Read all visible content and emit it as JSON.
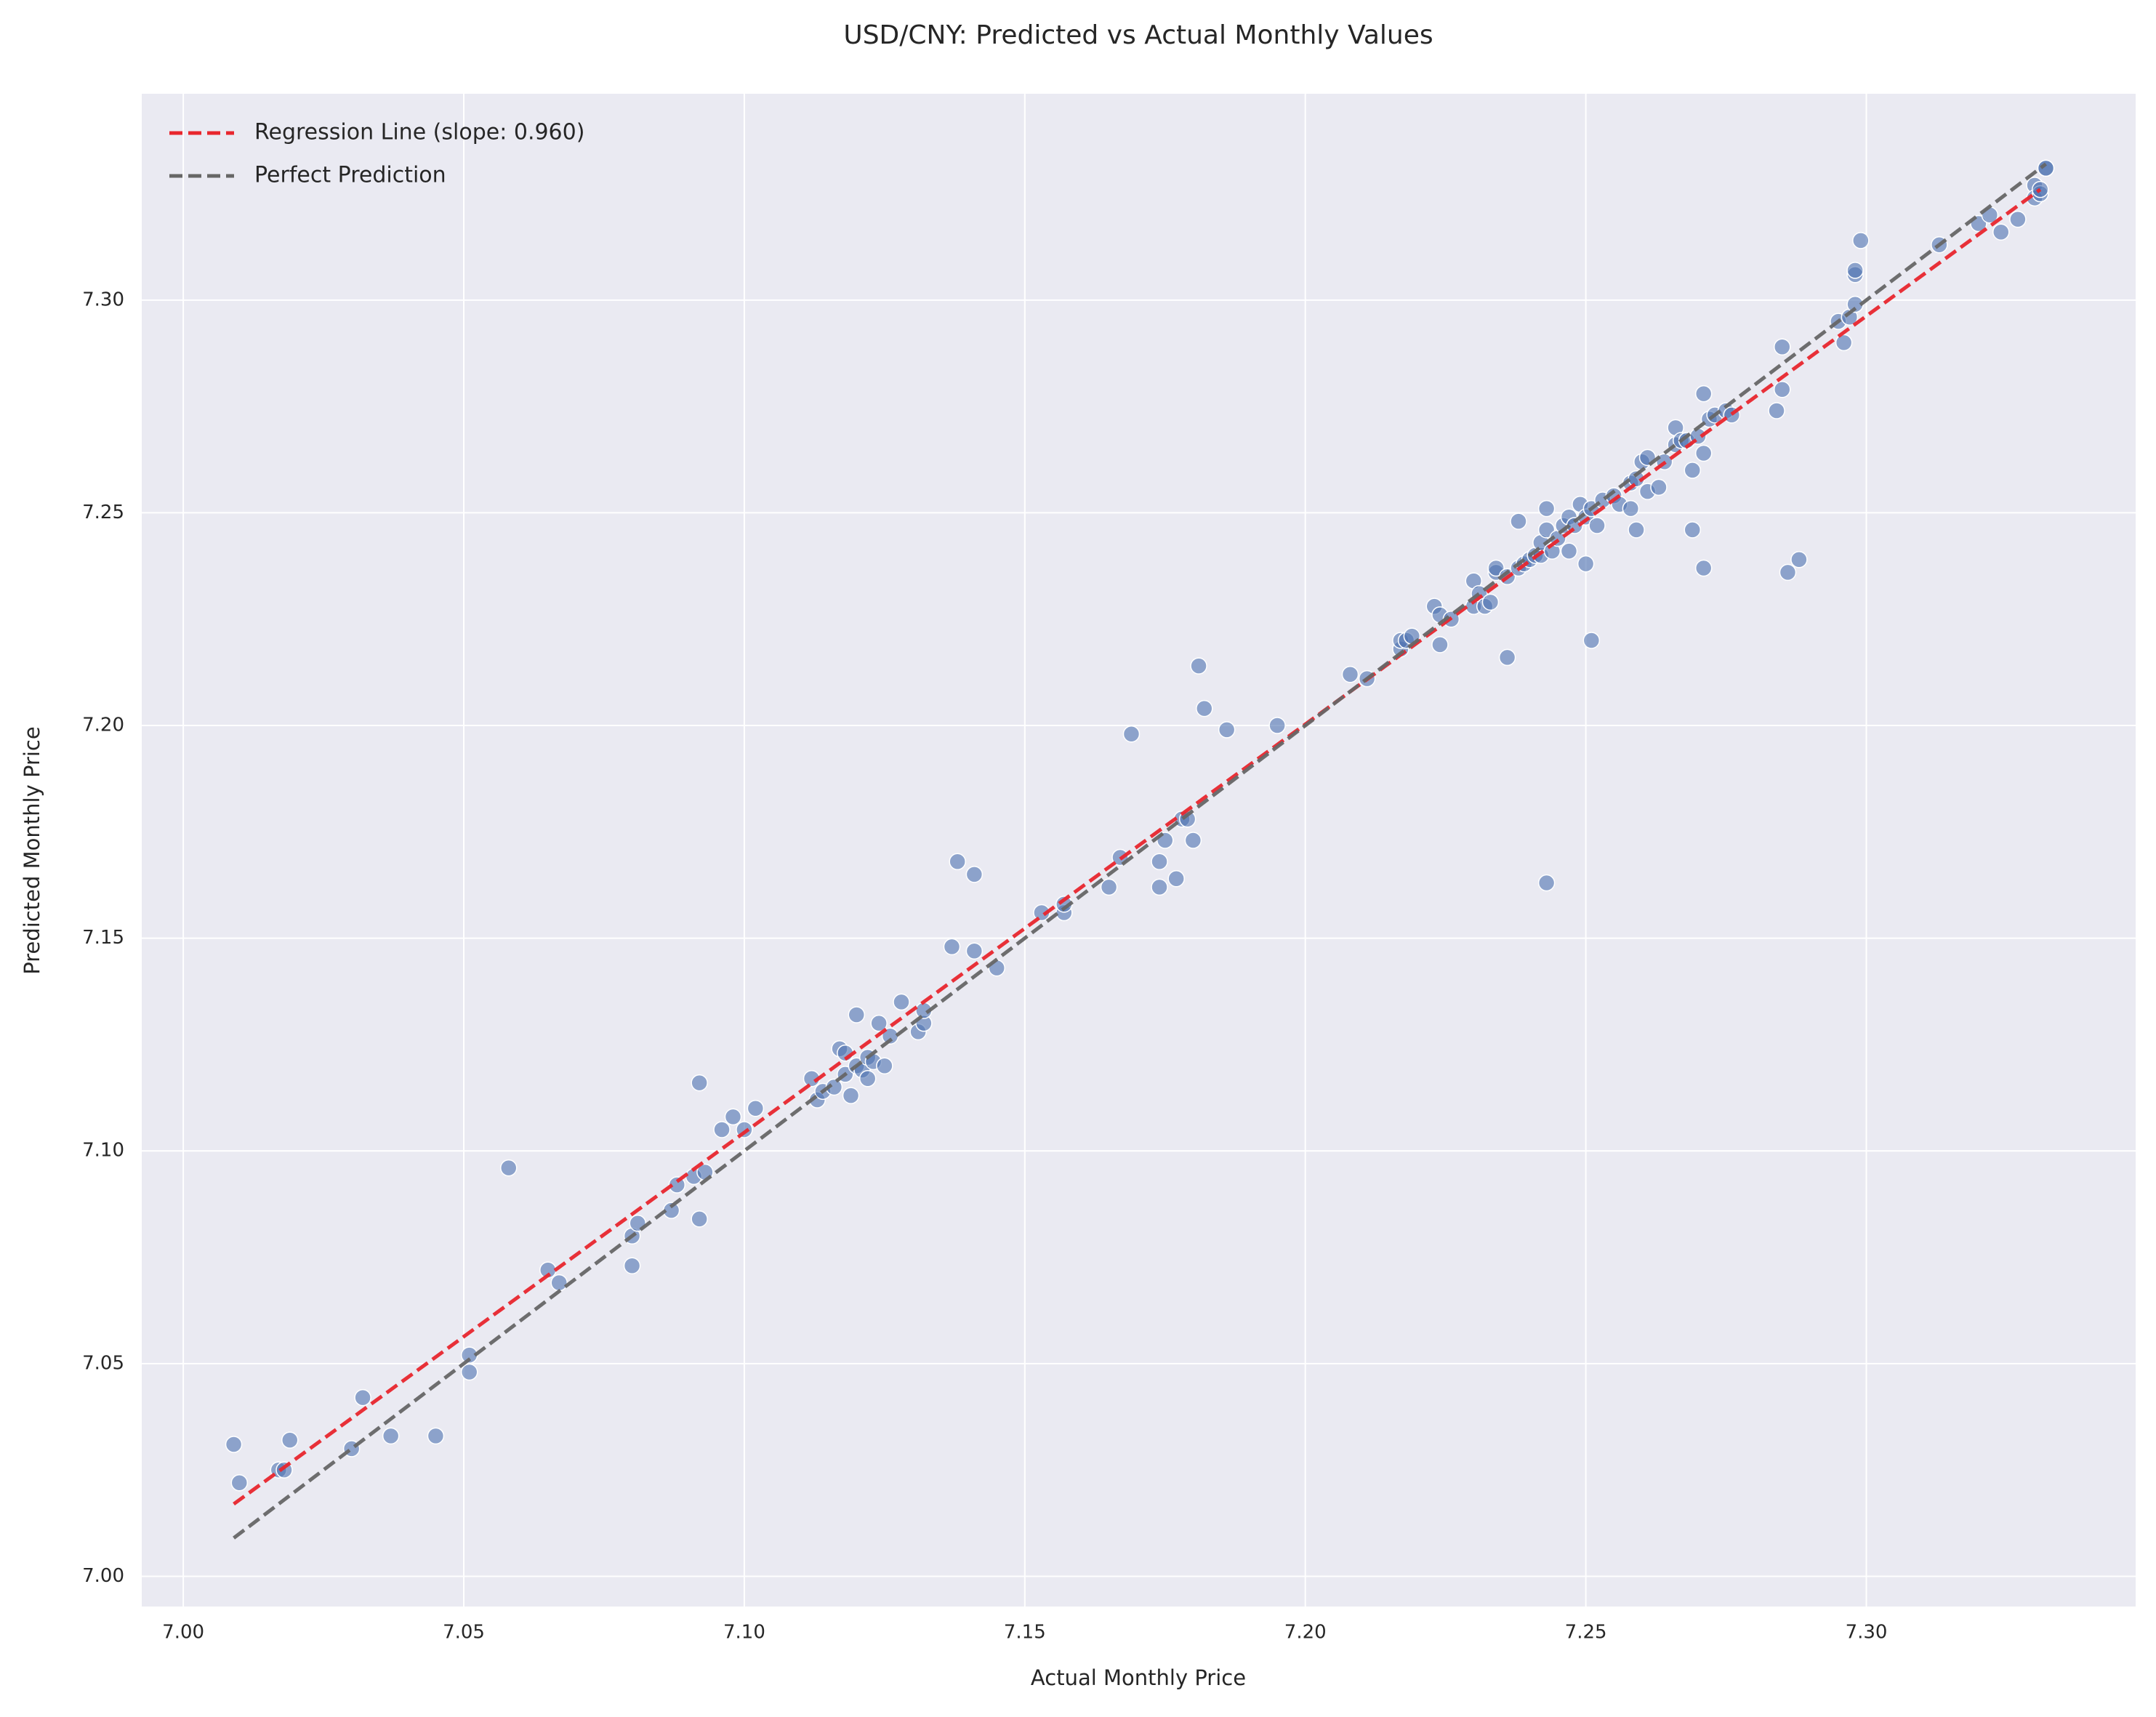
{
  "chart_data": {
    "type": "scatter",
    "title": "USD/CNY: Predicted vs Actual Monthly Values",
    "xlabel": "Actual Monthly Price",
    "ylabel": "Predicted Monthly Price",
    "xlim": [
      6.9926,
      7.348
    ],
    "ylim": [
      6.9929,
      7.3485
    ],
    "xticks": [
      {
        "value": 7.0,
        "label": "7.00"
      },
      {
        "value": 7.05,
        "label": "7.05"
      },
      {
        "value": 7.1,
        "label": "7.10"
      },
      {
        "value": 7.15,
        "label": "7.15"
      },
      {
        "value": 7.2,
        "label": "7.20"
      },
      {
        "value": 7.25,
        "label": "7.25"
      },
      {
        "value": 7.3,
        "label": "7.30"
      }
    ],
    "yticks": [
      {
        "value": 7.0,
        "label": "7.00"
      },
      {
        "value": 7.05,
        "label": "7.05"
      },
      {
        "value": 7.1,
        "label": "7.10"
      },
      {
        "value": 7.15,
        "label": "7.15"
      },
      {
        "value": 7.2,
        "label": "7.20"
      },
      {
        "value": 7.25,
        "label": "7.25"
      },
      {
        "value": 7.3,
        "label": "7.30"
      }
    ],
    "grid": true,
    "legend": "upper left",
    "points": {
      "color": "#4c72b0",
      "x": [
        7.009,
        7.01,
        7.017,
        7.018,
        7.019,
        7.03,
        7.032,
        7.037,
        7.045,
        7.051,
        7.051,
        7.058,
        7.065,
        7.067,
        7.08,
        7.08,
        7.081,
        7.087,
        7.088,
        7.091,
        7.092,
        7.092,
        7.093,
        7.096,
        7.098,
        7.1,
        7.102,
        7.112,
        7.113,
        7.114,
        7.116,
        7.117,
        7.118,
        7.118,
        7.119,
        7.12,
        7.12,
        7.121,
        7.122,
        7.122,
        7.123,
        7.124,
        7.125,
        7.126,
        7.128,
        7.131,
        7.132,
        7.132,
        7.137,
        7.138,
        7.141,
        7.141,
        7.145,
        7.153,
        7.157,
        7.157,
        7.165,
        7.167,
        7.169,
        7.174,
        7.174,
        7.175,
        7.177,
        7.178,
        7.179,
        7.18,
        7.181,
        7.182,
        7.186,
        7.195,
        7.208,
        7.211,
        7.217,
        7.217,
        7.218,
        7.219,
        7.223,
        7.224,
        7.224,
        7.226,
        7.23,
        7.23,
        7.231,
        7.232,
        7.233,
        7.234,
        7.234,
        7.236,
        7.236,
        7.238,
        7.238,
        7.239,
        7.24,
        7.241,
        7.242,
        7.242,
        7.243,
        7.243,
        7.243,
        7.244,
        7.245,
        7.246,
        7.247,
        7.247,
        7.248,
        7.249,
        7.25,
        7.25,
        7.251,
        7.251,
        7.252,
        7.253,
        7.255,
        7.256,
        7.258,
        7.258,
        7.259,
        7.259,
        7.26,
        7.261,
        7.261,
        7.263,
        7.264,
        7.266,
        7.266,
        7.267,
        7.268,
        7.269,
        7.269,
        7.27,
        7.271,
        7.271,
        7.271,
        7.272,
        7.273,
        7.275,
        7.276,
        7.284,
        7.285,
        7.285,
        7.286,
        7.288,
        7.295,
        7.296,
        7.297,
        7.298,
        7.298,
        7.298,
        7.299,
        7.313,
        7.32,
        7.322,
        7.324,
        7.327,
        7.33,
        7.33,
        7.331,
        7.331,
        7.332,
        7.332
      ],
      "y": [
        7.031,
        7.022,
        7.025,
        7.025,
        7.032,
        7.03,
        7.042,
        7.033,
        7.033,
        7.048,
        7.052,
        7.096,
        7.072,
        7.069,
        7.073,
        7.08,
        7.083,
        7.086,
        7.092,
        7.094,
        7.084,
        7.116,
        7.095,
        7.105,
        7.108,
        7.105,
        7.11,
        7.117,
        7.112,
        7.114,
        7.115,
        7.124,
        7.123,
        7.118,
        7.113,
        7.12,
        7.132,
        7.119,
        7.117,
        7.122,
        7.121,
        7.13,
        7.12,
        7.127,
        7.135,
        7.128,
        7.13,
        7.133,
        7.148,
        7.168,
        7.147,
        7.165,
        7.143,
        7.156,
        7.156,
        7.158,
        7.162,
        7.169,
        7.198,
        7.162,
        7.168,
        7.173,
        7.164,
        7.178,
        7.178,
        7.173,
        7.214,
        7.204,
        7.199,
        7.2,
        7.212,
        7.211,
        7.218,
        7.22,
        7.22,
        7.221,
        7.228,
        7.226,
        7.219,
        7.225,
        7.228,
        7.234,
        7.231,
        7.228,
        7.229,
        7.236,
        7.237,
        7.235,
        7.216,
        7.237,
        7.248,
        7.238,
        7.239,
        7.24,
        7.24,
        7.243,
        7.246,
        7.251,
        7.163,
        7.241,
        7.244,
        7.247,
        7.241,
        7.249,
        7.247,
        7.252,
        7.238,
        7.249,
        7.22,
        7.251,
        7.247,
        7.253,
        7.254,
        7.252,
        7.257,
        7.251,
        7.258,
        7.246,
        7.262,
        7.263,
        7.255,
        7.256,
        7.262,
        7.27,
        7.266,
        7.267,
        7.267,
        7.26,
        7.246,
        7.268,
        7.237,
        7.264,
        7.278,
        7.272,
        7.273,
        7.274,
        7.273,
        7.274,
        7.279,
        7.289,
        7.236,
        7.239,
        7.295,
        7.29,
        7.296,
        7.299,
        7.306,
        7.307,
        7.314,
        7.313,
        7.318,
        7.32,
        7.316,
        7.319,
        7.327,
        7.324,
        7.325,
        7.326,
        7.331,
        7.331
      ]
    },
    "lines": [
      {
        "name": "Regression Line (slope: 0.960)",
        "color": "#e8262d",
        "x": [
          7.009,
          7.331
        ],
        "y": [
          7.017,
          7.326
        ]
      },
      {
        "name": "Perfect Prediction",
        "color": "#666666",
        "x": [
          7.009,
          7.332
        ],
        "y": [
          7.009,
          7.332
        ]
      }
    ]
  }
}
